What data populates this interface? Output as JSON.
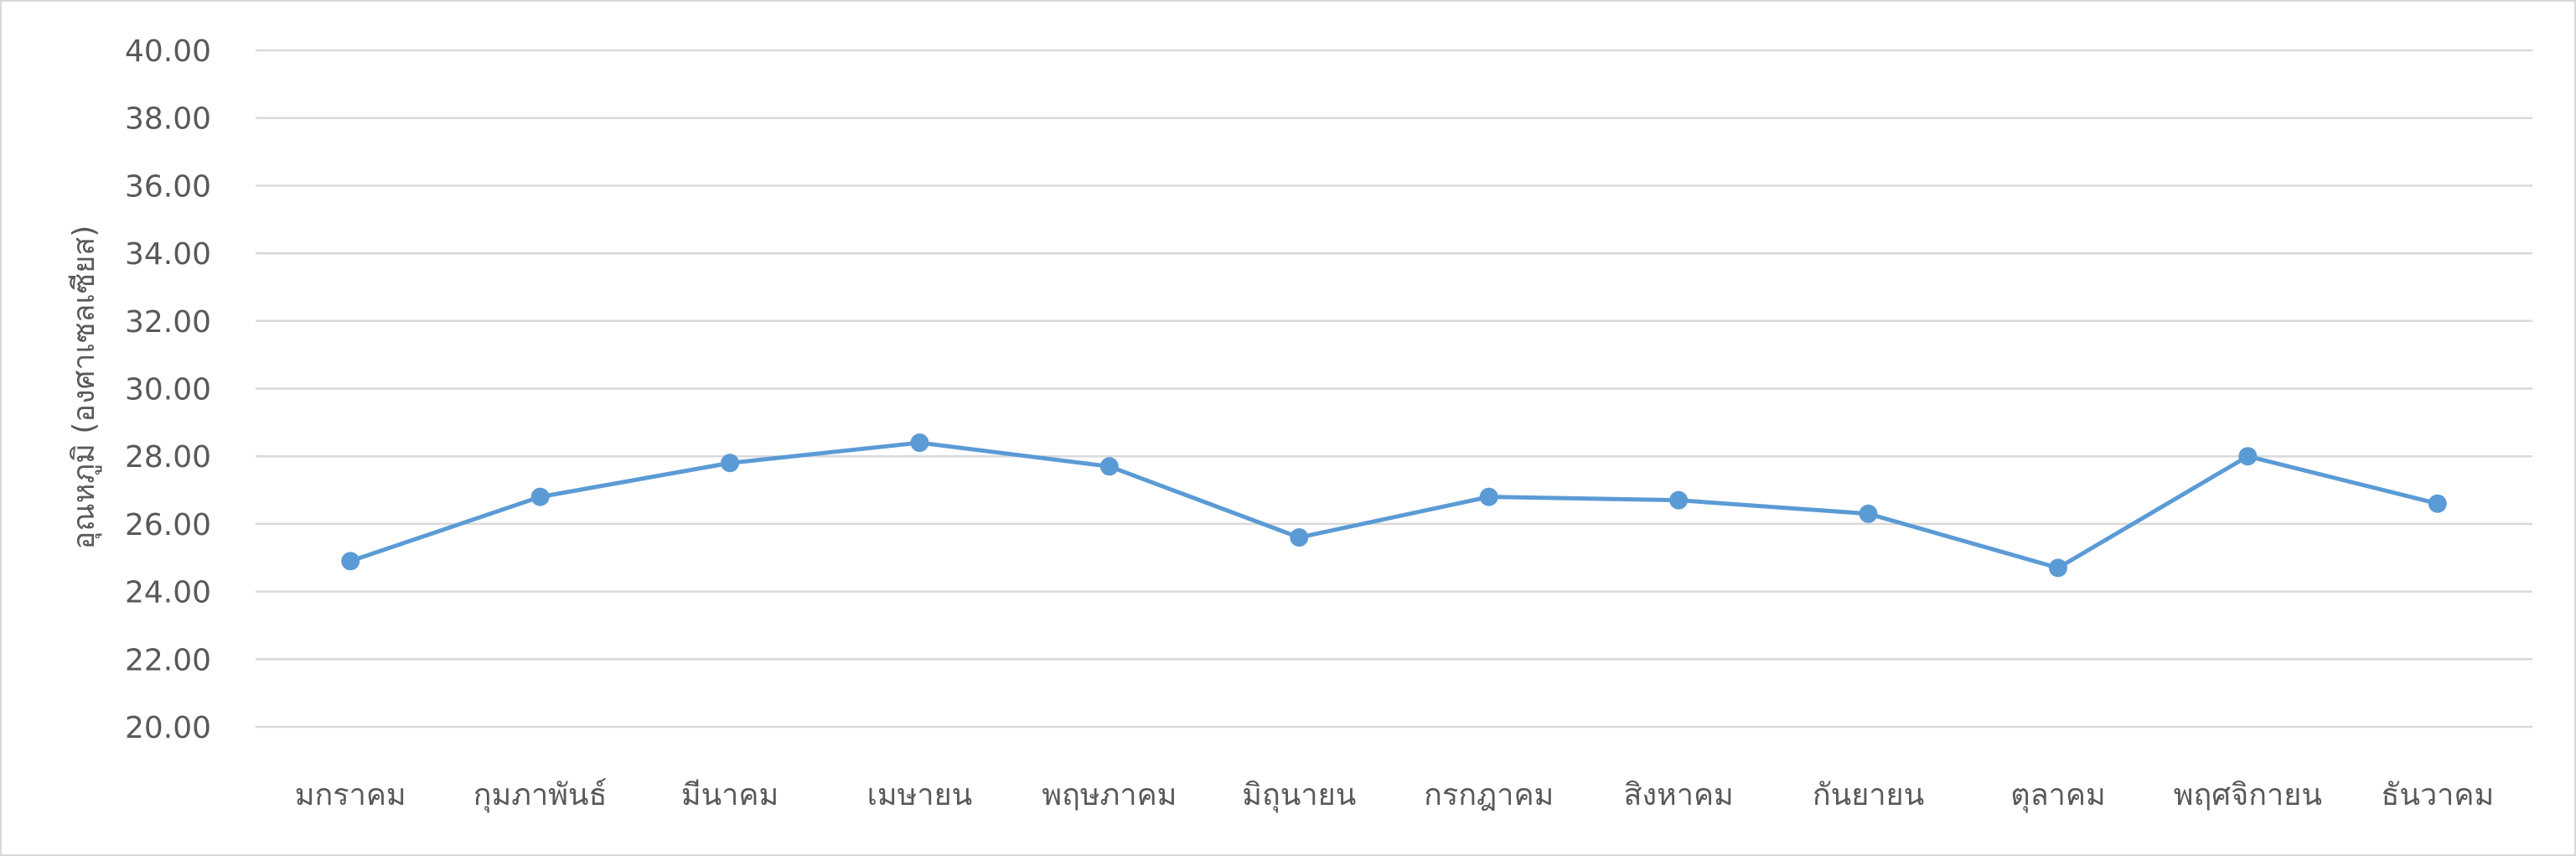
{
  "chart_data": {
    "type": "line",
    "title": "",
    "xlabel": "",
    "ylabel": "อุณหภูมิ (องศาเซลเซียส)",
    "ylim": [
      20,
      40
    ],
    "ytick_step": 2,
    "ytick_labels": [
      "20.00",
      "22.00",
      "24.00",
      "26.00",
      "28.00",
      "30.00",
      "32.00",
      "34.00",
      "36.00",
      "38.00",
      "40.00"
    ],
    "grid": true,
    "legend": "none",
    "categories": [
      "มกราคม",
      "กุมภาพันธ์",
      "มีนาคม",
      "เมษายน",
      "พฤษภาคม",
      "มิถุนายน",
      "กรกฎาคม",
      "สิงหาคม",
      "กันยายน",
      "ตุลาคม",
      "พฤศจิกายน",
      "ธันวาคม"
    ],
    "series": [
      {
        "name": "อุณหภูมิ",
        "values": [
          24.9,
          26.8,
          27.8,
          28.4,
          27.7,
          25.6,
          26.8,
          26.7,
          26.3,
          24.7,
          28.0,
          26.6
        ]
      }
    ],
    "colors": {
      "series": "#5b9bd5",
      "grid": "#d9d9d9",
      "text": "#595959"
    }
  }
}
